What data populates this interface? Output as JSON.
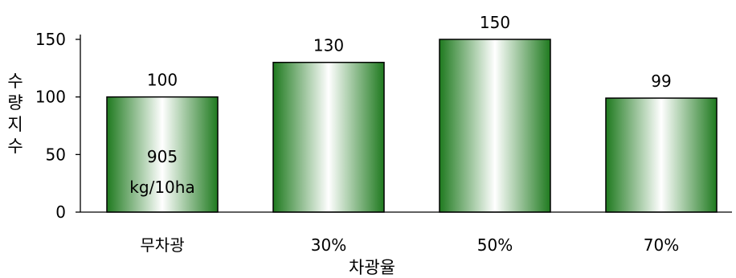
{
  "chart_data": {
    "type": "bar",
    "categories": [
      "무차광",
      "30%",
      "50%",
      "70%"
    ],
    "values": [
      100,
      130,
      150,
      99
    ],
    "data_labels": [
      "100",
      "130",
      "150",
      "99"
    ],
    "annotation": [
      "905",
      "kg/10ha"
    ],
    "title": "",
    "xlabel": "차광율",
    "ylabel": [
      "수",
      "량",
      "지",
      "수"
    ],
    "ylim": [
      0,
      150
    ],
    "yticks": [
      0,
      50,
      100,
      150
    ],
    "grid": false,
    "legend": "none",
    "bar_fill_edge": "#1f7a1f",
    "bar_fill_center": "#ffffff",
    "bar_stroke": "#000000"
  }
}
